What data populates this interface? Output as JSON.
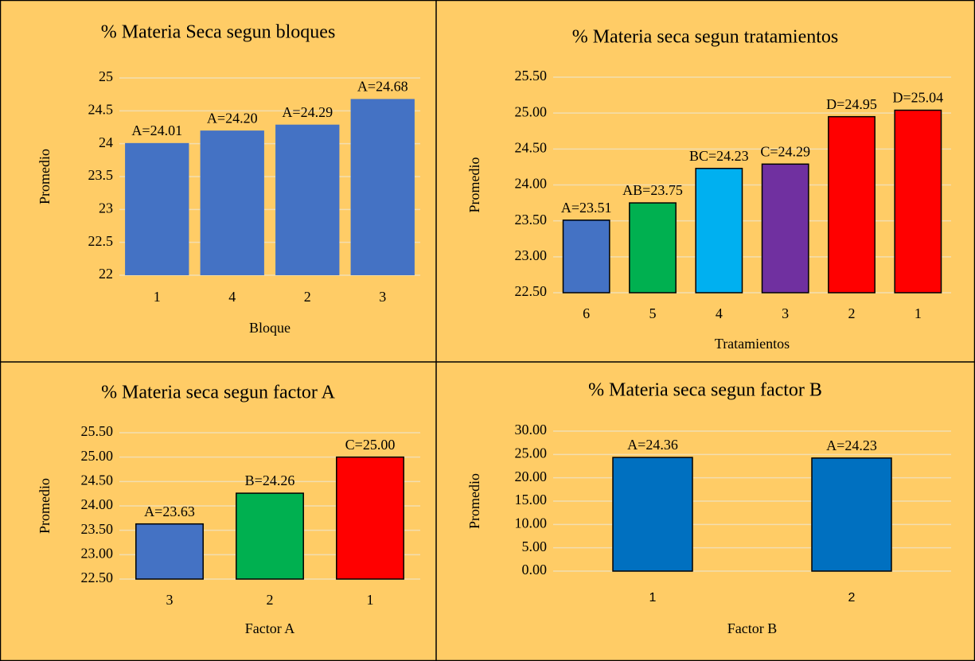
{
  "chart_data": [
    {
      "type": "bar",
      "title": "% Materia Seca segun bloques",
      "x_label": "Bloque",
      "y_label": "Promedio",
      "categories": [
        "1",
        "4",
        "2",
        "3"
      ],
      "values": [
        24.01,
        24.2,
        24.29,
        24.68
      ],
      "value_labels": [
        "A=24.01",
        "A=24.20",
        "A=24.29",
        "A=24.68"
      ],
      "colors": [
        "#4472c4",
        "#4472c4",
        "#4472c4",
        "#4472c4"
      ],
      "bar_border": false,
      "ylim": [
        22,
        25
      ],
      "yticks": [
        22,
        22.5,
        23,
        23.5,
        24,
        24.5,
        25
      ],
      "grid": true
    },
    {
      "type": "bar",
      "title": "% Materia seca segun tratamientos",
      "x_label": "Tratamientos",
      "y_label": "Promedio",
      "categories": [
        "6",
        "5",
        "4",
        "3",
        "2",
        "1"
      ],
      "values": [
        23.51,
        23.75,
        24.23,
        24.29,
        24.95,
        25.04
      ],
      "value_labels": [
        "A=23.51",
        "AB=23.75",
        "BC=24.23",
        "C=24.29",
        "D=24.95",
        "D=25.04"
      ],
      "colors": [
        "#4472c4",
        "#00b050",
        "#00b0f0",
        "#7030a0",
        "#ff0000",
        "#ff0000"
      ],
      "bar_border": true,
      "ylim": [
        22.5,
        25.5
      ],
      "yticks": [
        {
          "value": 22.5,
          "label": "22.50"
        },
        {
          "value": 23,
          "label": "23.00"
        },
        {
          "value": 23.5,
          "label": "23.50"
        },
        {
          "value": 24,
          "label": "24.00"
        },
        {
          "value": 24.5,
          "label": "24.50"
        },
        {
          "value": 25,
          "label": "25.00"
        },
        {
          "value": 25.5,
          "label": "25.50"
        }
      ],
      "grid": true
    },
    {
      "type": "bar",
      "title": "% Materia seca segun factor A",
      "x_label": "Factor A",
      "y_label": "Promedio",
      "categories": [
        "3",
        "2",
        "1"
      ],
      "values": [
        23.63,
        24.26,
        25.0
      ],
      "value_labels": [
        "A=23.63",
        "B=24.26",
        "C=25.00"
      ],
      "colors": [
        "#4472c4",
        "#00b050",
        "#ff0000"
      ],
      "bar_border": true,
      "ylim": [
        22.5,
        25.5
      ],
      "yticks": [
        {
          "value": 22.5,
          "label": "22.50"
        },
        {
          "value": 23,
          "label": "23.00"
        },
        {
          "value": 23.5,
          "label": "23.50"
        },
        {
          "value": 24,
          "label": "24.00"
        },
        {
          "value": 24.5,
          "label": "24.50"
        },
        {
          "value": 25,
          "label": "25.00"
        },
        {
          "value": 25.5,
          "label": "25.50"
        }
      ],
      "grid": true
    },
    {
      "type": "bar",
      "title": "% Materia seca segun factor B",
      "x_label": "Factor B",
      "y_label": "Promedio",
      "categories": [
        "1",
        "2"
      ],
      "values": [
        24.36,
        24.23
      ],
      "value_labels": [
        "A=24.36",
        "A=24.23"
      ],
      "colors": [
        "#0070c0",
        "#0070c0"
      ],
      "bar_border": true,
      "ylim": [
        0,
        30
      ],
      "yticks": [
        {
          "value": 0,
          "label": "0.00"
        },
        {
          "value": 5,
          "label": "5.00"
        },
        {
          "value": 10,
          "label": "10.00"
        },
        {
          "value": 15,
          "label": "15.00"
        },
        {
          "value": 20,
          "label": "20.00"
        },
        {
          "value": 25,
          "label": "25.00"
        },
        {
          "value": 30,
          "label": "30.00"
        }
      ],
      "grid": true
    }
  ]
}
